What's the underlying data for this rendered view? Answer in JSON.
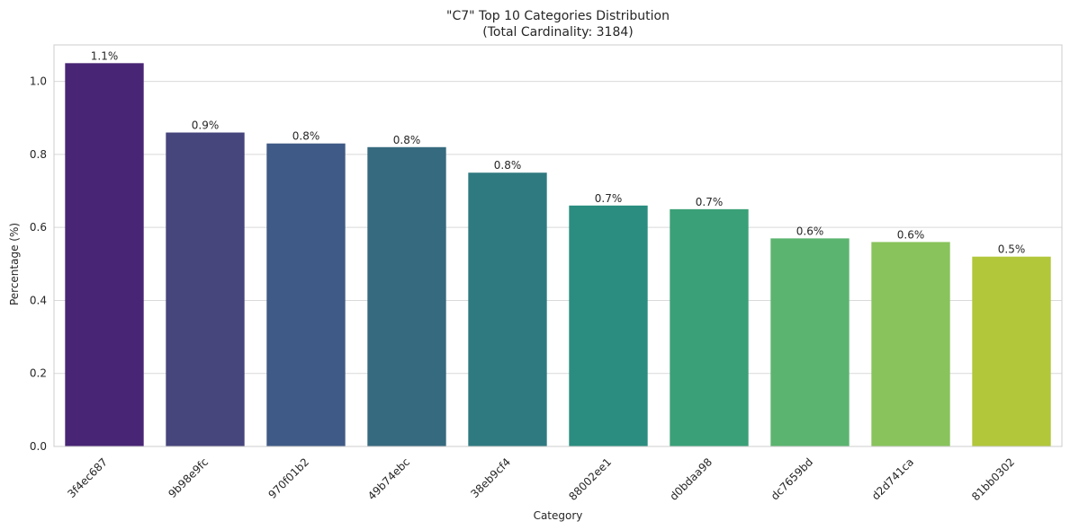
{
  "chart_data": {
    "type": "bar",
    "title_lines": [
      "\"C7\" Top 10 Categories Distribution",
      "(Total Cardinality: 3184)"
    ],
    "xlabel": "Category",
    "ylabel": "Percentage (%)",
    "categories": [
      "3f4ec687",
      "9b98e9fc",
      "970f01b2",
      "49b74ebc",
      "38eb9cf4",
      "88002ee1",
      "d0bdaa98",
      "dc7659bd",
      "d2d741ca",
      "81bb0302"
    ],
    "values": [
      1.05,
      0.86,
      0.83,
      0.82,
      0.75,
      0.66,
      0.65,
      0.57,
      0.56,
      0.52
    ],
    "data_labels": [
      "1.1%",
      "0.9%",
      "0.8%",
      "0.8%",
      "0.8%",
      "0.7%",
      "0.7%",
      "0.6%",
      "0.6%",
      "0.5%"
    ],
    "colors": [
      "#482575",
      "#46457c",
      "#3f5a86",
      "#366a7e",
      "#2f7a80",
      "#2a8d7f",
      "#3aa077",
      "#5bb46f",
      "#88c35b",
      "#b2c73a"
    ],
    "ylim": [
      0,
      1.1
    ],
    "yticks": [
      0.0,
      0.2,
      0.4,
      0.6,
      0.8,
      1.0
    ],
    "ytick_labels": [
      "0.0",
      "0.2",
      "0.4",
      "0.6",
      "0.8",
      "1.0"
    ],
    "xtick_rotation": 45,
    "grid": {
      "y": true,
      "x": false,
      "color": "#d9d9d9"
    },
    "background": "#ffffff",
    "spine_color": "#cccccc"
  }
}
